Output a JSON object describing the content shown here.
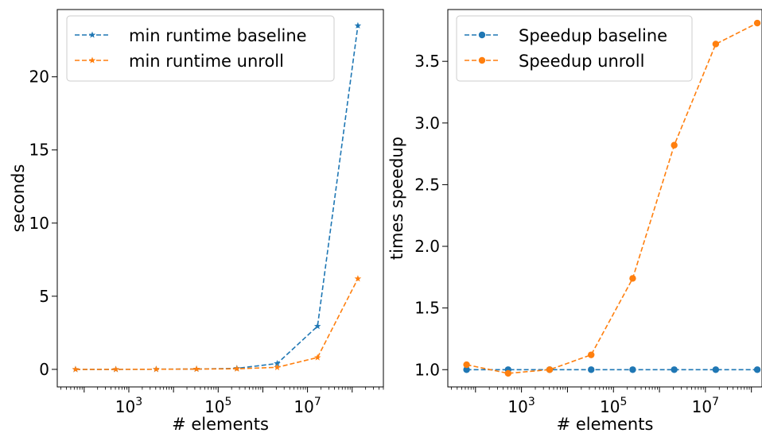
{
  "chart_data": [
    {
      "type": "line",
      "xscale": "log",
      "xlabel": "# elements",
      "ylabel": "seconds",
      "xlim": [
        25,
        500000000
      ],
      "ylim": [
        -1.2,
        24.6
      ],
      "x_tick_labels": [
        {
          "value": 1000,
          "mantissa": "10",
          "exp": "3"
        },
        {
          "value": 100000,
          "mantissa": "10",
          "exp": "5"
        },
        {
          "value": 10000000,
          "mantissa": "10",
          "exp": "7"
        }
      ],
      "y_ticks": [
        {
          "value": 0,
          "label": "0"
        },
        {
          "value": 5,
          "label": "5"
        },
        {
          "value": 10,
          "label": "10"
        },
        {
          "value": 15,
          "label": "15"
        },
        {
          "value": 20,
          "label": "20"
        }
      ],
      "grid": false,
      "legend_position": "upper-left",
      "series": [
        {
          "name": "min runtime baseline",
          "color": "#1f77b4",
          "marker": "star",
          "x": [
            64,
            512,
            4096,
            32768,
            262144,
            2097152,
            16777216,
            134217728
          ],
          "y": [
            0.0,
            0.0,
            0.01,
            0.02,
            0.07,
            0.4,
            2.95,
            23.5
          ]
        },
        {
          "name": "min runtime unroll",
          "color": "#ff7f0e",
          "marker": "star",
          "x": [
            64,
            512,
            4096,
            32768,
            262144,
            2097152,
            16777216,
            134217728
          ],
          "y": [
            0.0,
            0.0,
            0.01,
            0.02,
            0.04,
            0.14,
            0.81,
            6.2
          ]
        }
      ]
    },
    {
      "type": "line",
      "xscale": "log",
      "xlabel": "# elements",
      "ylabel": "times speedup",
      "xlim": [
        25,
        170000000
      ],
      "ylim": [
        0.86,
        3.92
      ],
      "x_tick_labels": [
        {
          "value": 1000,
          "mantissa": "10",
          "exp": "3"
        },
        {
          "value": 100000,
          "mantissa": "10",
          "exp": "5"
        },
        {
          "value": 10000000,
          "mantissa": "10",
          "exp": "7"
        }
      ],
      "y_ticks": [
        {
          "value": 1.0,
          "label": "1.0"
        },
        {
          "value": 1.5,
          "label": "1.5"
        },
        {
          "value": 2.0,
          "label": "2.0"
        },
        {
          "value": 2.5,
          "label": "2.5"
        },
        {
          "value": 3.0,
          "label": "3.0"
        },
        {
          "value": 3.5,
          "label": "3.5"
        }
      ],
      "grid": false,
      "legend_position": "upper-left",
      "series": [
        {
          "name": "Speedup baseline",
          "color": "#1f77b4",
          "marker": "circle",
          "x": [
            64,
            512,
            4096,
            32768,
            262144,
            2097152,
            16777216,
            134217728
          ],
          "y": [
            1.0,
            1.0,
            1.0,
            1.0,
            1.0,
            1.0,
            1.0,
            1.0
          ]
        },
        {
          "name": "Speedup unroll",
          "color": "#ff7f0e",
          "marker": "circle",
          "x": [
            64,
            512,
            4096,
            32768,
            262144,
            2097152,
            16777216,
            134217728
          ],
          "y": [
            1.04,
            0.97,
            1.0,
            1.12,
            1.74,
            2.82,
            3.64,
            3.81
          ]
        }
      ]
    }
  ]
}
